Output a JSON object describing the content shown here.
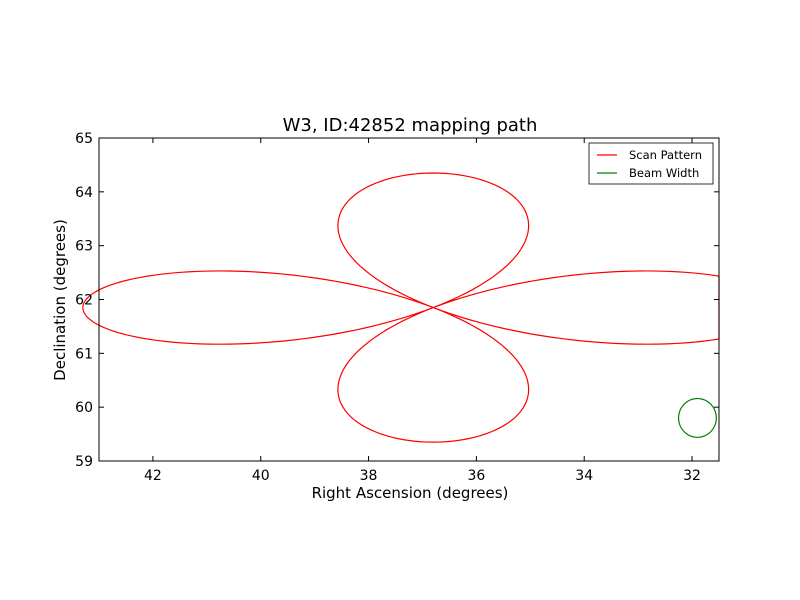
{
  "chart_data": {
    "type": "line",
    "title": "W3, ID:42852 mapping path",
    "xlabel": "Right Ascension (degrees)",
    "ylabel": "Declination (degrees)",
    "xlim": [
      43.0,
      31.5
    ],
    "ylim": [
      59,
      65
    ],
    "xticks": [
      42,
      40,
      38,
      36,
      34,
      32
    ],
    "yticks": [
      59,
      60,
      61,
      62,
      63,
      64,
      65
    ],
    "grid": false,
    "legend_position": "top-right",
    "series": [
      {
        "name": "Scan Pattern",
        "color": "#ff0000",
        "kind": "rose-curve",
        "center": [
          36.8,
          61.85
        ],
        "ra_radius_deg": 6.5,
        "dec_radius_deg": 2.5,
        "start_angle_deg": 174,
        "end_angle_deg": 534
      },
      {
        "name": "Beam Width",
        "color": "#008000",
        "kind": "circle",
        "center": [
          31.9,
          59.8
        ],
        "ra_radius_deg": 0.35,
        "dec_radius_deg": 0.36
      }
    ]
  }
}
